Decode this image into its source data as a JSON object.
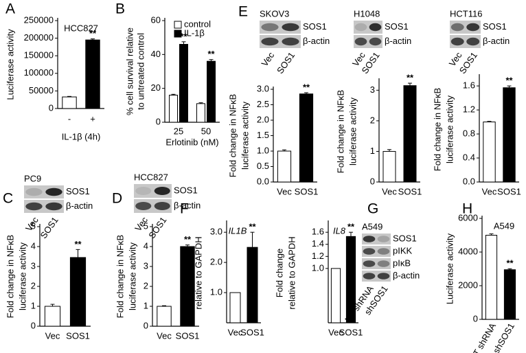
{
  "chart_data": [
    {
      "type": "bar",
      "panel": "A",
      "annotation": "HCC827",
      "ylabel": [
        "Luciferase activity"
      ],
      "xlabel": "IL-1β (4h)",
      "categories": [
        "-",
        "+"
      ],
      "values": [
        33000,
        195000
      ],
      "errors": [
        1500,
        3000
      ],
      "colors": [
        "#ffffff",
        "#000000"
      ],
      "significance": [
        null,
        "**"
      ],
      "ylim": [
        0,
        250000
      ],
      "yticks": [
        0,
        50000,
        100000,
        150000,
        200000,
        250000
      ]
    },
    {
      "type": "bar",
      "panel": "B",
      "ylabel": [
        "% cell survival relative",
        "to untreated control"
      ],
      "xlabel": "Erlotinib (nM)",
      "categories": [
        "25",
        "50"
      ],
      "series": [
        {
          "name": "control",
          "color": "#ffffff",
          "values": [
            16,
            11
          ],
          "errors": [
            0.5,
            0.5
          ],
          "significance": [
            null,
            null
          ]
        },
        {
          "name": "IL-1β",
          "color": "#000000",
          "values": [
            46,
            36
          ],
          "errors": [
            1.5,
            1
          ],
          "significance": [
            "**",
            "**"
          ]
        }
      ],
      "ylim": [
        0,
        60
      ],
      "yticks": [
        0,
        20,
        40,
        60
      ]
    },
    {
      "type": "bar",
      "panel": "C",
      "ylabel": [
        "Fold change in NFκB",
        "luciferase activity"
      ],
      "categories": [
        "Vec",
        "SOS1"
      ],
      "values": [
        1,
        3.45
      ],
      "errors": [
        0.1,
        0.4
      ],
      "colors": [
        "#ffffff",
        "#000000"
      ],
      "significance": [
        null,
        "**"
      ],
      "ylim": [
        0,
        5
      ],
      "yticks": [
        0,
        1,
        2,
        3,
        4,
        5
      ]
    },
    {
      "type": "bar",
      "panel": "D",
      "ylabel": [
        "Fold change in NFκB",
        "luciferase activity"
      ],
      "categories": [
        "Vec",
        "SOS1"
      ],
      "values": [
        1,
        4.0
      ],
      "errors": [
        0.03,
        0.08
      ],
      "colors": [
        "#ffffff",
        "#000000"
      ],
      "significance": [
        null,
        "**"
      ],
      "ylim": [
        0,
        5
      ],
      "yticks": [
        0,
        1,
        2,
        3,
        4,
        5
      ]
    },
    {
      "type": "bar",
      "panel": "E",
      "ylabel": [
        "Fold change in NFκB",
        "luciferase activity"
      ],
      "categories": [
        "Vec",
        "SOS1"
      ],
      "values": [
        1.0,
        2.85
      ],
      "errors": [
        0.04,
        0.04
      ],
      "colors": [
        "#ffffff",
        "#000000"
      ],
      "significance": [
        null,
        "**"
      ],
      "ylim": [
        0,
        3.0
      ],
      "yticks": [
        {
          "value": 0,
          "label": "0.0"
        },
        0.5,
        {
          "value": 1,
          "label": "1.0"
        },
        1.5,
        {
          "value": 2,
          "label": "2.0"
        },
        2.5,
        {
          "value": 3,
          "label": "3.0"
        }
      ]
    },
    {
      "type": "bar",
      "ylabel": [
        "Fold change in NFκB",
        "luciferase activity"
      ],
      "categories": [
        "Vec",
        "SOS1"
      ],
      "values": [
        1.0,
        3.15
      ],
      "errors": [
        0.06,
        0.08
      ],
      "colors": [
        "#ffffff",
        "#000000"
      ],
      "significance": [
        null,
        "**"
      ],
      "ylim": [
        0,
        3.3
      ],
      "yticks": [
        0,
        1,
        2,
        3
      ]
    },
    {
      "type": "bar",
      "ylabel": [
        "Fold change in NFκB",
        "luciferase activity"
      ],
      "categories": [
        "Vec",
        "SOS1"
      ],
      "values": [
        1.0,
        1.57
      ],
      "errors": [
        0.01,
        0.03
      ],
      "colors": [
        "#ffffff",
        "#000000"
      ],
      "significance": [
        null,
        "**"
      ],
      "ylim": [
        0,
        1.75
      ],
      "yticks": [
        {
          "value": 0,
          "label": "0.0"
        },
        0.4,
        0.8,
        1.2,
        1.6
      ]
    },
    {
      "type": "bar",
      "panel": "F",
      "annotation": "IL1B",
      "ylabel": [
        "Fold change",
        "relative to GAPDH"
      ],
      "categories": [
        "Vec",
        "SOS1"
      ],
      "values": [
        1.0,
        2.5
      ],
      "errors": [
        0,
        0.5
      ],
      "colors": [
        "#ffffff",
        "#000000"
      ],
      "significance": [
        null,
        "**"
      ],
      "ylim": [
        0,
        3.3
      ],
      "yticks": [
        {
          "value": 1,
          "label": "1.0"
        },
        {
          "value": 2,
          "label": "2.0"
        },
        {
          "value": 3,
          "label": "3.0"
        }
      ]
    },
    {
      "type": "bar",
      "annotation": "IL8",
      "ylabel": [
        "Fold change",
        "relative to GAPDH"
      ],
      "categories": [
        "Vec",
        "SOS1"
      ],
      "values": [
        1.0,
        1.53
      ],
      "errors": [
        0,
        0.07
      ],
      "colors": [
        "#ffffff",
        "#000000"
      ],
      "significance": [
        null,
        "**"
      ],
      "ylim": [
        0.1,
        1.75
      ],
      "yticks": [
        {
          "value": 1,
          "label": "1.0"
        },
        1.2,
        1.4,
        1.6
      ]
    },
    {
      "type": "bar",
      "panel": "H",
      "annotation": "A549",
      "ylabel": [
        "Luciferase  activity"
      ],
      "categories": [
        "NT shRNA",
        "shSOS1"
      ],
      "values": [
        5000,
        2950
      ],
      "errors": [
        80,
        60
      ],
      "colors": [
        "#ffffff",
        "#000000"
      ],
      "significance": [
        null,
        "**"
      ],
      "ylim": [
        0,
        6000
      ],
      "yticks": [
        0,
        2000,
        4000,
        6000
      ]
    }
  ],
  "blots": [
    {
      "title": "PC9",
      "rows": [
        "SOS1",
        "β-actin"
      ],
      "lanes": [
        "Vec",
        "SOS1"
      ]
    },
    {
      "title": "HCC827",
      "rows": [
        "SOS1",
        "β-actin"
      ],
      "lanes": [
        "Vec",
        "SOS1"
      ]
    },
    {
      "title": "SKOV3",
      "rows": [
        "SOS1",
        "β-actin"
      ],
      "lanes": [
        "Vec",
        "SOS1"
      ]
    },
    {
      "title": "H1048",
      "rows": [
        "SOS1",
        "β-actin"
      ],
      "lanes": [
        "Vec",
        "SOS1"
      ]
    },
    {
      "title": "HCT116",
      "rows": [
        "SOS1",
        "β-actin"
      ],
      "lanes": [
        "Vec",
        "SOS1"
      ]
    },
    {
      "panel": "G",
      "title": "A549",
      "rows": [
        "SOS1",
        "pIKK",
        "pIκB",
        "β-actin"
      ],
      "lanes": [
        "NT shRNA",
        "shSOS1"
      ]
    }
  ]
}
